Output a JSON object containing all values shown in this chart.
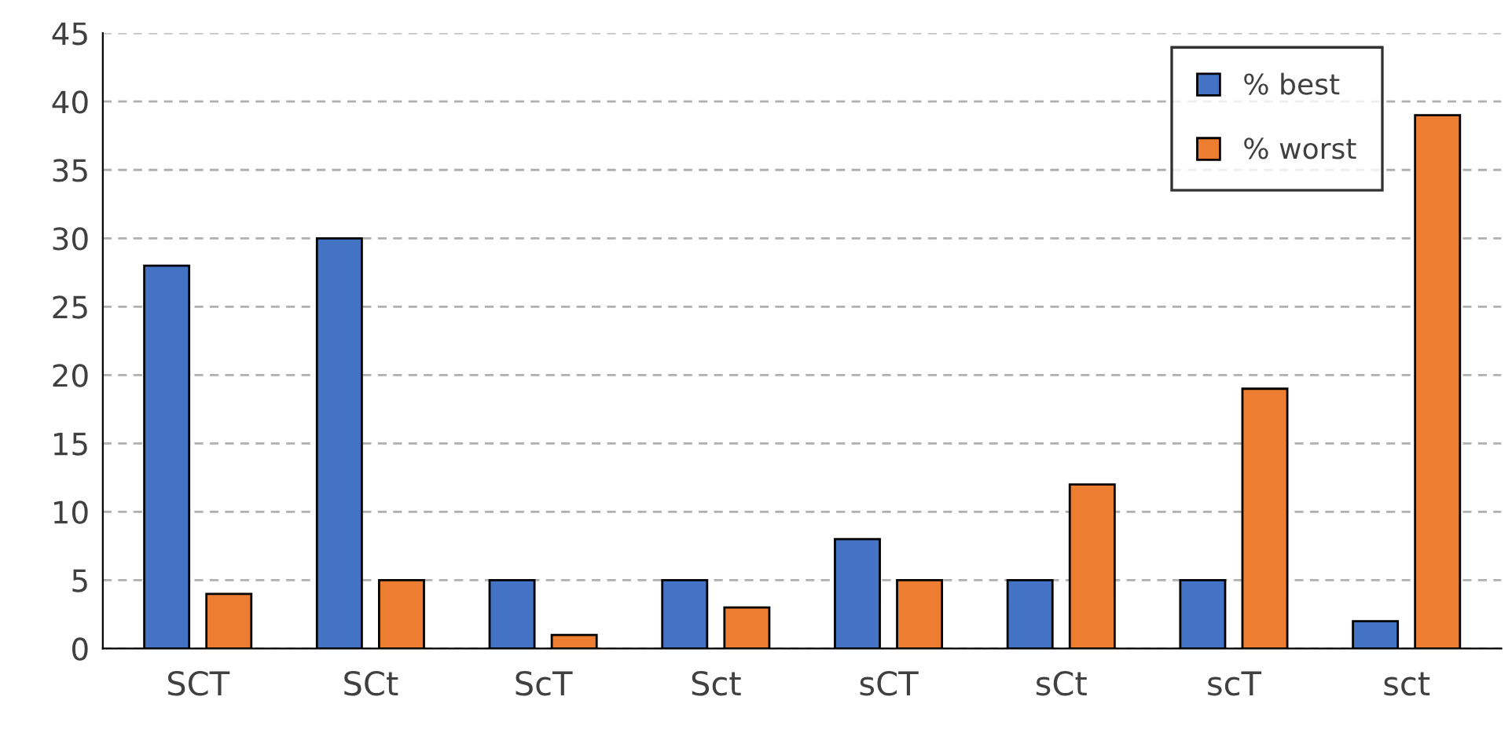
{
  "chart_data": {
    "type": "bar",
    "categories": [
      "SCT",
      "SCt",
      "ScT",
      "Sct",
      "sCT",
      "sCt",
      "scT",
      "sct"
    ],
    "series": [
      {
        "name": "% best",
        "color": "#4472c4",
        "values": [
          28,
          30,
          5,
          5,
          8,
          5,
          5,
          2
        ]
      },
      {
        "name": "% worst",
        "color": "#ed7d31",
        "values": [
          4,
          5,
          1,
          3,
          5,
          12,
          19,
          39
        ]
      }
    ],
    "ylim": [
      0,
      45
    ],
    "yticks": [
      0,
      5,
      10,
      15,
      20,
      25,
      30,
      35,
      40,
      45
    ],
    "grid": "y",
    "legend": "top right"
  }
}
